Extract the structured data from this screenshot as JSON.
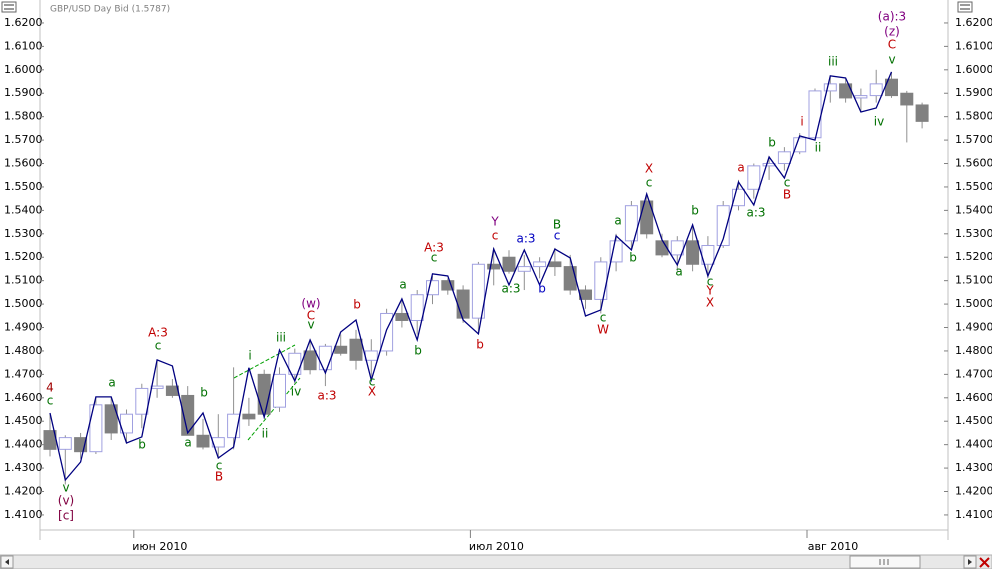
{
  "chart_data": {
    "type": "candlestick",
    "title": "GBP/USD Day Bid (1.5787)",
    "categories": [
      null,
      null,
      null,
      null,
      null,
      null,
      "июн 2010",
      null,
      null,
      null,
      null,
      null,
      null,
      null,
      null,
      null,
      null,
      null,
      null,
      null,
      null,
      null,
      null,
      null,
      null,
      null,
      null,
      null,
      "июл 2010",
      null,
      null,
      null,
      null,
      null,
      null,
      null,
      null,
      null,
      null,
      null,
      null,
      null,
      null,
      null,
      null,
      null,
      null,
      null,
      null,
      null,
      "авг 2010",
      null,
      null,
      null,
      null,
      null,
      null,
      null
    ],
    "open": [
      1.446,
      1.438,
      1.443,
      1.437,
      1.457,
      1.445,
      1.453,
      1.464,
      1.465,
      1.461,
      1.444,
      1.439,
      1.443,
      1.453,
      1.47,
      1.456,
      1.47,
      1.48,
      1.472,
      1.482,
      1.485,
      1.476,
      1.48,
      1.496,
      1.493,
      1.504,
      1.51,
      1.506,
      1.494,
      1.517,
      1.52,
      1.514,
      1.516,
      1.518,
      1.516,
      1.506,
      1.502,
      1.518,
      1.527,
      1.544,
      1.527,
      1.521,
      1.527,
      1.517,
      1.525,
      1.542,
      1.549,
      1.559,
      1.56,
      1.565,
      1.571,
      1.591,
      1.594,
      1.588,
      1.589,
      1.596,
      1.59,
      1.585
    ],
    "high": [
      1.453,
      1.444,
      1.445,
      1.46,
      1.46,
      1.455,
      1.466,
      1.476,
      1.468,
      1.465,
      1.451,
      1.453,
      1.473,
      1.46,
      1.472,
      1.473,
      1.481,
      1.485,
      1.483,
      1.487,
      1.489,
      1.485,
      1.498,
      1.502,
      1.506,
      1.512,
      1.511,
      1.508,
      1.518,
      1.524,
      1.523,
      1.521,
      1.52,
      1.524,
      1.521,
      1.508,
      1.52,
      1.53,
      1.544,
      1.546,
      1.53,
      1.529,
      1.533,
      1.529,
      1.544,
      1.553,
      1.56,
      1.563,
      1.567,
      1.573,
      1.592,
      1.597,
      1.596,
      1.592,
      1.6,
      1.599,
      1.591,
      1.586
    ],
    "low": [
      1.435,
      1.423,
      1.434,
      1.436,
      1.442,
      1.441,
      1.447,
      1.46,
      1.46,
      1.444,
      1.438,
      1.434,
      1.438,
      1.448,
      1.451,
      1.454,
      1.466,
      1.47,
      1.465,
      1.478,
      1.472,
      1.469,
      1.478,
      1.49,
      1.487,
      1.5,
      1.504,
      1.492,
      1.487,
      1.508,
      1.513,
      1.506,
      1.511,
      1.512,
      1.504,
      1.498,
      1.496,
      1.514,
      1.523,
      1.528,
      1.52,
      1.514,
      1.514,
      1.511,
      1.524,
      1.54,
      1.545,
      1.553,
      1.557,
      1.564,
      1.57,
      1.586,
      1.586,
      1.582,
      1.586,
      1.588,
      1.569,
      1.575
    ],
    "close": [
      1.438,
      1.443,
      1.437,
      1.457,
      1.445,
      1.453,
      1.464,
      1.465,
      1.461,
      1.444,
      1.439,
      1.443,
      1.453,
      1.451,
      1.453,
      1.47,
      1.479,
      1.472,
      1.482,
      1.479,
      1.476,
      1.48,
      1.496,
      1.493,
      1.504,
      1.51,
      1.506,
      1.494,
      1.517,
      1.515,
      1.514,
      1.516,
      1.518,
      1.516,
      1.506,
      1.502,
      1.518,
      1.527,
      1.542,
      1.53,
      1.521,
      1.527,
      1.517,
      1.525,
      1.542,
      1.549,
      1.559,
      1.56,
      1.565,
      1.571,
      1.591,
      1.594,
      1.588,
      1.589,
      1.594,
      1.589,
      1.585,
      1.578
    ],
    "up_color": "#ffffff",
    "up_border": "#a0a0e0",
    "down_color": "#808080",
    "wick_color": "#909090",
    "wave": {
      "color": "#000080",
      "values": [
        1.4535,
        1.4249,
        1.4326,
        1.4604,
        1.4604,
        1.4407,
        1.4433,
        1.4762,
        1.4736,
        1.445,
        1.4535,
        1.4343,
        1.439,
        1.4728,
        1.4518,
        1.4804,
        1.4672,
        1.4847,
        1.4706,
        1.4881,
        1.4932,
        1.4676,
        1.489,
        1.5022,
        1.4847,
        1.5129,
        1.512,
        1.4932,
        1.4873,
        1.5235,
        1.5082,
        1.5231,
        1.5082,
        1.5235,
        1.5197,
        1.4949,
        1.4975,
        1.5291,
        1.5231,
        1.547,
        1.5274,
        1.5167,
        1.5338,
        1.512,
        1.5278,
        1.5521,
        1.5423,
        1.5628,
        1.5538,
        1.5718,
        1.57,
        1.5974,
        1.5965,
        1.582,
        1.5837,
        1.5991,
        null,
        null
      ]
    },
    "ylim": [
      1.3993,
      1.6298
    ],
    "yticks": [
      {
        "value": 1.41,
        "label": "1.4100"
      },
      {
        "value": 1.42,
        "label": "1.4200"
      },
      {
        "value": 1.43,
        "label": "1.4300"
      },
      {
        "value": 1.44,
        "label": "1.4400"
      },
      {
        "value": 1.45,
        "label": "1.4500"
      },
      {
        "value": 1.46,
        "label": "1.4600"
      },
      {
        "value": 1.47,
        "label": "1.4700"
      },
      {
        "value": 1.48,
        "label": "1.4800"
      },
      {
        "value": 1.49,
        "label": "1.4900"
      },
      {
        "value": 1.5,
        "label": "1.5000"
      },
      {
        "value": 1.51,
        "label": "1.5100"
      },
      {
        "value": 1.52,
        "label": "1.5200"
      },
      {
        "value": 1.53,
        "label": "1.5300"
      },
      {
        "value": 1.54,
        "label": "1.5400"
      },
      {
        "value": 1.55,
        "label": "1.5500"
      },
      {
        "value": 1.56,
        "label": "1.5600"
      },
      {
        "value": 1.57,
        "label": "1.5700"
      },
      {
        "value": 1.58,
        "label": "1.5800"
      },
      {
        "value": 1.59,
        "label": "1.5900"
      },
      {
        "value": 1.6,
        "label": "1.6000"
      },
      {
        "value": 1.61,
        "label": "1.6100"
      },
      {
        "value": 1.62,
        "label": "1.6200"
      }
    ],
    "annotations": [
      {
        "text": "4",
        "color": "#a00000"
      },
      {
        "text": "c",
        "color": "#007000"
      },
      {
        "text": "v",
        "color": "#007000"
      },
      {
        "text": "(v)",
        "color": "#800040"
      },
      {
        "text": "[c]",
        "color": "#800040"
      },
      {
        "text": "a",
        "color": "#007000"
      },
      {
        "text": "b",
        "color": "#007000"
      },
      {
        "text": "A:3",
        "color": "#c00000"
      },
      {
        "text": "c",
        "color": "#007000"
      },
      {
        "text": "b",
        "color": "#007000"
      },
      {
        "text": "a",
        "color": "#007000"
      },
      {
        "text": "c",
        "color": "#007000"
      },
      {
        "text": "B",
        "color": "#c00000"
      },
      {
        "text": "i",
        "color": "#007000"
      },
      {
        "text": "ii",
        "color": "#007000"
      },
      {
        "text": "iii",
        "color": "#007000"
      },
      {
        "text": "iv",
        "color": "#007000"
      },
      {
        "text": "(w)",
        "color": "#800080"
      },
      {
        "text": "C",
        "color": "#c00000"
      },
      {
        "text": "v",
        "color": "#007000"
      },
      {
        "text": "b",
        "color": "#c00000"
      },
      {
        "text": "a:3",
        "color": "#c00000"
      },
      {
        "text": "c",
        "color": "#007000"
      },
      {
        "text": "X",
        "color": "#c00000"
      },
      {
        "text": "a",
        "color": "#007000"
      },
      {
        "text": "b",
        "color": "#007000"
      },
      {
        "text": "A:3",
        "color": "#c00000"
      },
      {
        "text": "c",
        "color": "#007000"
      },
      {
        "text": "b",
        "color": "#c00000"
      },
      {
        "text": "Y",
        "color": "#800080"
      },
      {
        "text": "c",
        "color": "#c00000"
      },
      {
        "text": "a:3",
        "color": "#007000"
      },
      {
        "text": "a:3",
        "color": "#0000c0"
      },
      {
        "text": "b",
        "color": "#0000c0"
      },
      {
        "text": "B",
        "color": "#007000"
      },
      {
        "text": "c",
        "color": "#0000c0"
      },
      {
        "text": "W",
        "color": "#c00000"
      },
      {
        "text": "c",
        "color": "#007000"
      },
      {
        "text": "a",
        "color": "#007000"
      },
      {
        "text": "b",
        "color": "#007000"
      },
      {
        "text": "X",
        "color": "#c00000"
      },
      {
        "text": "c",
        "color": "#007000"
      },
      {
        "text": "a",
        "color": "#007000"
      },
      {
        "text": "b",
        "color": "#007000"
      },
      {
        "text": "c",
        "color": "#007000"
      },
      {
        "text": "Y",
        "color": "#c00000"
      },
      {
        "text": "X",
        "color": "#c00000"
      },
      {
        "text": "a",
        "color": "#c00000"
      },
      {
        "text": "a:3",
        "color": "#007000"
      },
      {
        "text": "b",
        "color": "#007000"
      },
      {
        "text": "c",
        "color": "#007000"
      },
      {
        "text": "B",
        "color": "#c00000"
      },
      {
        "text": "i",
        "color": "#c00000"
      },
      {
        "text": "ii",
        "color": "#007000"
      },
      {
        "text": "iii",
        "color": "#007000"
      },
      {
        "text": "iv",
        "color": "#007000"
      },
      {
        "text": "(a):3",
        "color": "#800080"
      },
      {
        "text": "(z)",
        "color": "#800080"
      },
      {
        "text": "C",
        "color": "#c00000"
      },
      {
        "text": "v",
        "color": "#007000"
      }
    ]
  }
}
